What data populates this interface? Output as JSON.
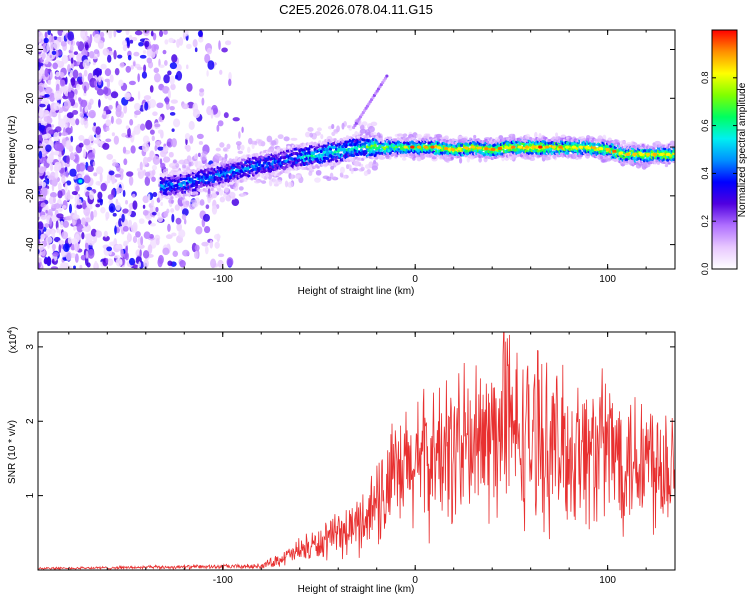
{
  "title": "C2E5.2026.078.04.11.G15",
  "chart_data": [
    {
      "type": "heatmap",
      "name": "spectrogram",
      "xlabel": "Height of straight line (km)",
      "ylabel": "Frequency (Hz)",
      "xlim": [
        -196,
        135
      ],
      "ylim": [
        -50,
        48
      ],
      "xticks": [
        -100,
        0,
        100
      ],
      "xtick_labels": [
        "-100",
        "0",
        "100"
      ],
      "yticks": [
        -40,
        -20,
        0,
        20,
        40
      ],
      "ytick_labels": [
        "-40",
        "-20",
        "0",
        "20",
        "40"
      ],
      "colorbar": {
        "label": "Normalized spectral amplitude",
        "range": [
          0,
          1
        ],
        "ticks": [
          0,
          0.2,
          0.4,
          0.6,
          0.8
        ],
        "tick_labels": [
          "0.0",
          "0.2",
          "0.4",
          "0.6",
          "0.8"
        ],
        "colormap": [
          "#ffffff",
          "#e8c8ff",
          "#b070ff",
          "#5000e0",
          "#0000ff",
          "#0090ff",
          "#00f0f0",
          "#00ff60",
          "#80ff00",
          "#ffff00",
          "#ff9000",
          "#ff0000"
        ]
      },
      "ridge": {
        "x": [
          -130,
          -120,
          -110,
          -100,
          -90,
          -80,
          -70,
          -60,
          -50,
          -45,
          -40,
          -30,
          -20,
          -10,
          0,
          10,
          20,
          30,
          40,
          50,
          60,
          70,
          80,
          90,
          100,
          110,
          120,
          130
        ],
        "y": [
          -16,
          -15,
          -13,
          -11,
          -9,
          -7,
          -6,
          -4,
          -3,
          -2,
          -2,
          0,
          0,
          0,
          0,
          0,
          -1,
          0,
          -1,
          0,
          0,
          0,
          0,
          0,
          -1,
          -3,
          -3,
          -3
        ]
      },
      "streak": {
        "x": [
          -32,
          -14
        ],
        "y": [
          8,
          30
        ]
      }
    },
    {
      "type": "line",
      "name": "snr",
      "xlabel": "Height of straight line (km)",
      "ylabel": "SNR (10 * v/v)",
      "multiplier_label": "(x10",
      "multiplier_exponent": "4",
      "multiplier_close": ")",
      "xlim": [
        -196,
        135
      ],
      "ylim": [
        0,
        3.2
      ],
      "xticks": [
        -100,
        0,
        100
      ],
      "xtick_labels": [
        "-100",
        "0",
        "100"
      ],
      "yticks": [
        1,
        2,
        3
      ],
      "ytick_labels": [
        "1",
        "2",
        "3"
      ],
      "series": [
        {
          "name": "SNR",
          "color": "#e83030",
          "envelope_x": [
            -196,
            -120,
            -80,
            -65,
            -50,
            -40,
            -30,
            -20,
            -10,
            0,
            10,
            20,
            30,
            40,
            50,
            60,
            70,
            80,
            90,
            100,
            110,
            120,
            135
          ],
          "envelope_y": [
            0.02,
            0.04,
            0.05,
            0.2,
            0.35,
            0.45,
            0.6,
            0.9,
            1.2,
            1.4,
            1.5,
            1.6,
            1.65,
            1.75,
            1.85,
            1.75,
            1.65,
            1.6,
            1.6,
            1.6,
            1.55,
            1.5,
            1.5
          ],
          "noise_fraction": 0.55,
          "step_km": 0.28,
          "peak": {
            "x": 46,
            "y": 3.2
          }
        }
      ]
    }
  ]
}
